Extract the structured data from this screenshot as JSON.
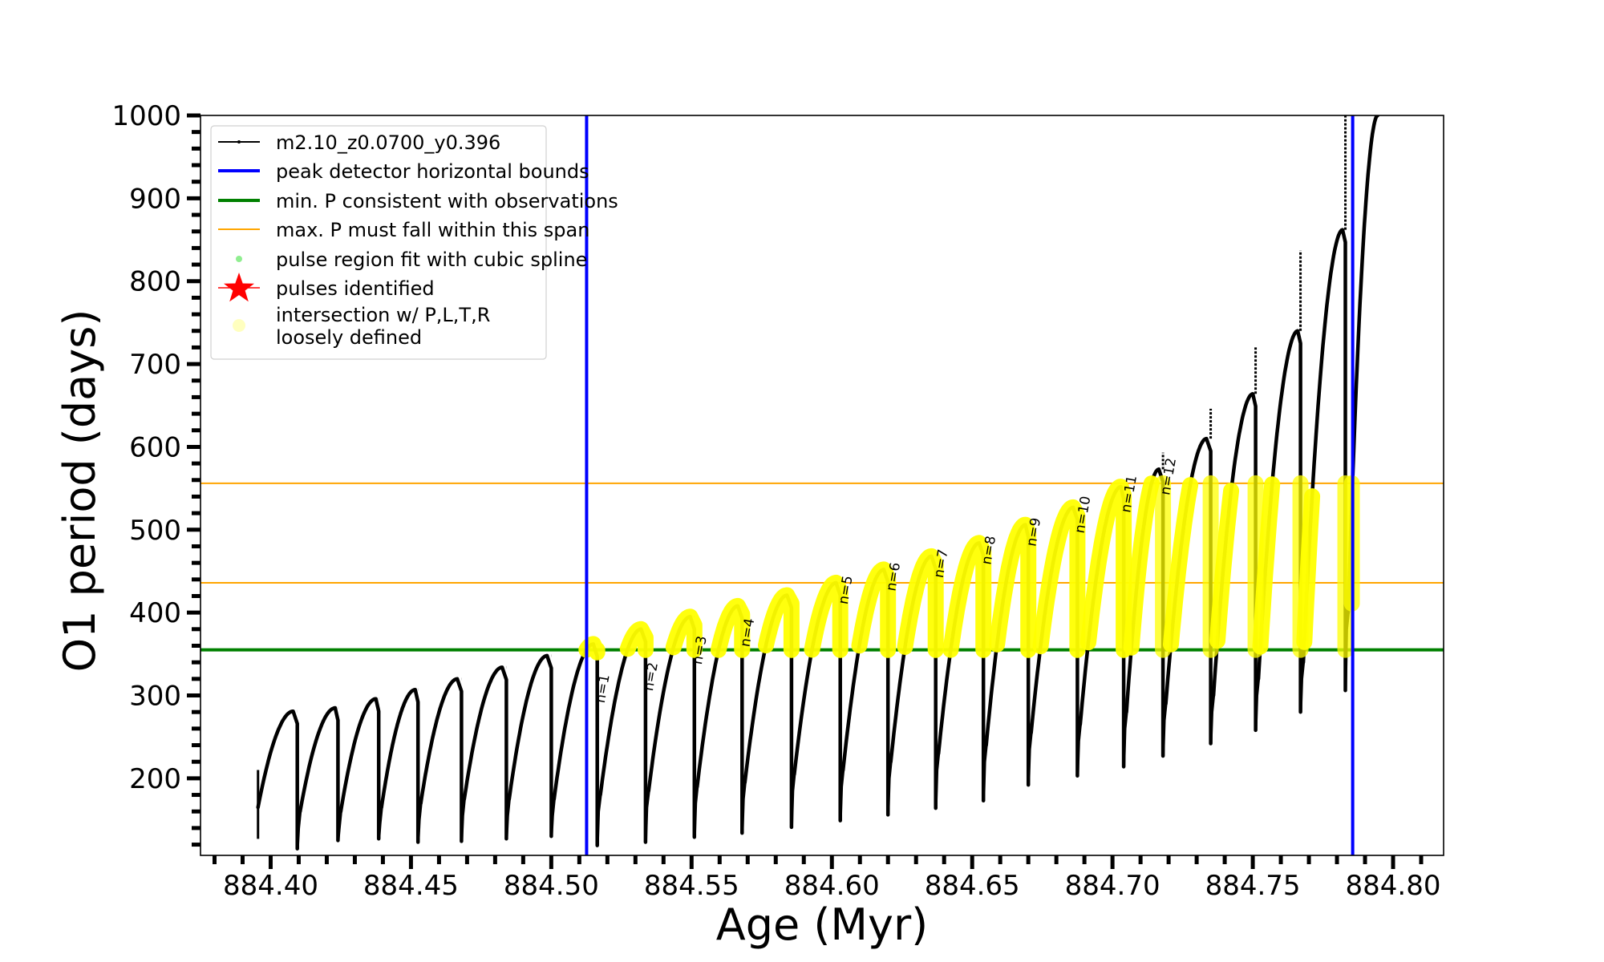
{
  "chart_data": {
    "type": "line",
    "title": "",
    "xlabel": "Age (Myr)",
    "ylabel": "O1 period (days)",
    "xlim": [
      884.375,
      884.818
    ],
    "ylim": [
      107,
      1000
    ],
    "x_ticks": [
      884.4,
      884.45,
      884.5,
      884.55,
      884.6,
      884.65,
      884.7,
      884.75,
      884.8
    ],
    "x_tick_labels": [
      "884.40",
      "884.45",
      "884.50",
      "884.55",
      "884.60",
      "884.65",
      "884.70",
      "884.75",
      "884.80"
    ],
    "x_minor_step": 0.01,
    "y_ticks": [
      200,
      300,
      400,
      500,
      600,
      700,
      800,
      900,
      1000
    ],
    "y_tick_labels": [
      "200",
      "300",
      "400",
      "500",
      "600",
      "700",
      "800",
      "900",
      "1000"
    ],
    "y_minor_step": 20,
    "grid": false,
    "legend_position": "top-left",
    "colors": {
      "track": "#000000",
      "bounds": "#0000ff",
      "min_p": "#008000",
      "max_p_span": "#ffa500",
      "spline": "#90ee90",
      "pulses": "#ff0000",
      "intersection": "#ffff00"
    },
    "legend": [
      {
        "label": "m2.10_z0.0700_y0.396",
        "kind": "line-dot",
        "color_key": "track"
      },
      {
        "label": "peak detector horizontal bounds",
        "kind": "thick-line",
        "color_key": "bounds"
      },
      {
        "label": "min. P consistent with observations",
        "kind": "thick-line",
        "color_key": "min_p"
      },
      {
        "label": "max. P must fall within this span",
        "kind": "thin-line",
        "color_key": "max_p_span"
      },
      {
        "label": "pulse region fit with cubic spline",
        "kind": "dot",
        "color_key": "spline"
      },
      {
        "label": "pulses identified",
        "kind": "star",
        "color_key": "pulses"
      },
      {
        "label": "intersection w/ P,L,T,R",
        "label2": "loosely defined",
        "kind": "big-dot",
        "color_key": "intersection"
      }
    ],
    "vertical_bounds": [
      884.5126,
      884.7856
    ],
    "min_p_line": 355,
    "max_p_span": [
      436,
      556
    ],
    "series": [
      {
        "name": "m2.10_z0.0700_y0.396",
        "pulses": [
          {
            "start": [
              884.3955,
              165
            ],
            "peak": [
              884.408,
              281
            ],
            "drop": 884.4095,
            "min": 115,
            "spike": 281,
            "n": null
          },
          {
            "start": [
              884.4105,
              160
            ],
            "peak": [
              884.423,
              285
            ],
            "drop": 884.424,
            "min": 125,
            "spike": 285,
            "n": null
          },
          {
            "start": [
              884.425,
              160
            ],
            "peak": [
              884.4375,
              296
            ],
            "drop": 884.4385,
            "min": 127,
            "spike": 296,
            "n": null
          },
          {
            "start": [
              884.4395,
              165
            ],
            "peak": [
              884.4515,
              307
            ],
            "drop": 884.4525,
            "min": 123,
            "spike": 307,
            "n": null
          },
          {
            "start": [
              884.4535,
              170
            ],
            "peak": [
              884.4665,
              320
            ],
            "drop": 884.468,
            "min": 124,
            "spike": 320,
            "n": null
          },
          {
            "start": [
              884.469,
              175
            ],
            "peak": [
              884.4825,
              334
            ],
            "drop": 884.484,
            "min": 127,
            "spike": 334,
            "n": null
          },
          {
            "start": [
              884.485,
              175
            ],
            "peak": [
              884.4985,
              348
            ],
            "drop": 884.5,
            "min": 130,
            "spike": 348,
            "n": null
          },
          {
            "start": [
              884.501,
              175
            ],
            "peak": [
              884.515,
              362
            ],
            "drop": 884.5164,
            "min": 119,
            "spike": 362,
            "n": 1
          },
          {
            "start": [
              884.5175,
              180
            ],
            "peak": [
              884.532,
              380
            ],
            "drop": 884.5336,
            "min": 123,
            "spike": 380,
            "n": 2
          },
          {
            "start": [
              884.5347,
              185
            ],
            "peak": [
              884.5495,
              395
            ],
            "drop": 884.551,
            "min": 129,
            "spike": 395,
            "n": 3
          },
          {
            "start": [
              884.552,
              190
            ],
            "peak": [
              884.5665,
              408
            ],
            "drop": 884.568,
            "min": 134,
            "spike": 408,
            "n": 4
          },
          {
            "start": [
              884.569,
              195
            ],
            "peak": [
              884.584,
              421
            ],
            "drop": 884.5856,
            "min": 141,
            "spike": 421,
            "n": null
          },
          {
            "start": [
              884.5866,
              205
            ],
            "peak": [
              884.6015,
              436
            ],
            "drop": 884.603,
            "min": 149,
            "spike": 436,
            "n": 5
          },
          {
            "start": [
              884.604,
              210
            ],
            "peak": [
              884.6185,
              452
            ],
            "drop": 884.62,
            "min": 156,
            "spike": 452,
            "n": 6
          },
          {
            "start": [
              884.621,
              220
            ],
            "peak": [
              884.6355,
              468
            ],
            "drop": 884.637,
            "min": 164,
            "spike": 468,
            "n": 7
          },
          {
            "start": [
              884.638,
              230
            ],
            "peak": [
              884.6525,
              484
            ],
            "drop": 884.654,
            "min": 173,
            "spike": 484,
            "n": 8
          },
          {
            "start": [
              884.655,
              240
            ],
            "peak": [
              884.669,
              506
            ],
            "drop": 884.67,
            "min": 192,
            "spike": 506,
            "n": 9
          },
          {
            "start": [
              884.671,
              255
            ],
            "peak": [
              884.686,
              527
            ],
            "drop": 884.6875,
            "min": 203,
            "spike": 527,
            "n": 10
          },
          {
            "start": [
              884.6885,
              265
            ],
            "peak": [
              884.703,
              552
            ],
            "drop": 884.704,
            "min": 214,
            "spike": 552,
            "n": 11
          },
          {
            "start": [
              884.705,
              280
            ],
            "peak": [
              884.7165,
              573
            ],
            "drop": 884.718,
            "min": 227,
            "spike": 593,
            "n": 12
          },
          {
            "start": [
              884.719,
              290
            ],
            "peak": [
              884.7335,
              610
            ],
            "drop": 884.735,
            "min": 242,
            "spike": 646,
            "n": null
          },
          {
            "start": [
              884.736,
              300
            ],
            "peak": [
              884.75,
              664
            ],
            "drop": 884.751,
            "min": 258,
            "spike": 720,
            "n": null
          },
          {
            "start": [
              884.752,
              320
            ],
            "peak": [
              884.766,
              740
            ],
            "drop": 884.767,
            "min": 280,
            "spike": 837,
            "n": null
          },
          {
            "start": [
              884.768,
              340
            ],
            "peak": [
              884.782,
              862
            ],
            "drop": 884.783,
            "min": 306,
            "spike": 1000,
            "n": null
          },
          {
            "start": [
              884.784,
              400
            ],
            "peak": [
              884.7945,
              1000
            ],
            "drop": null,
            "min": null,
            "spike": null,
            "n": null
          }
        ]
      }
    ],
    "n_labels": [
      "n=1",
      "n=2",
      "n=3",
      "n=4",
      "n=5",
      "n=6",
      "n=7",
      "n=8",
      "n=9",
      "n=10",
      "n=11",
      "n=12"
    ]
  }
}
